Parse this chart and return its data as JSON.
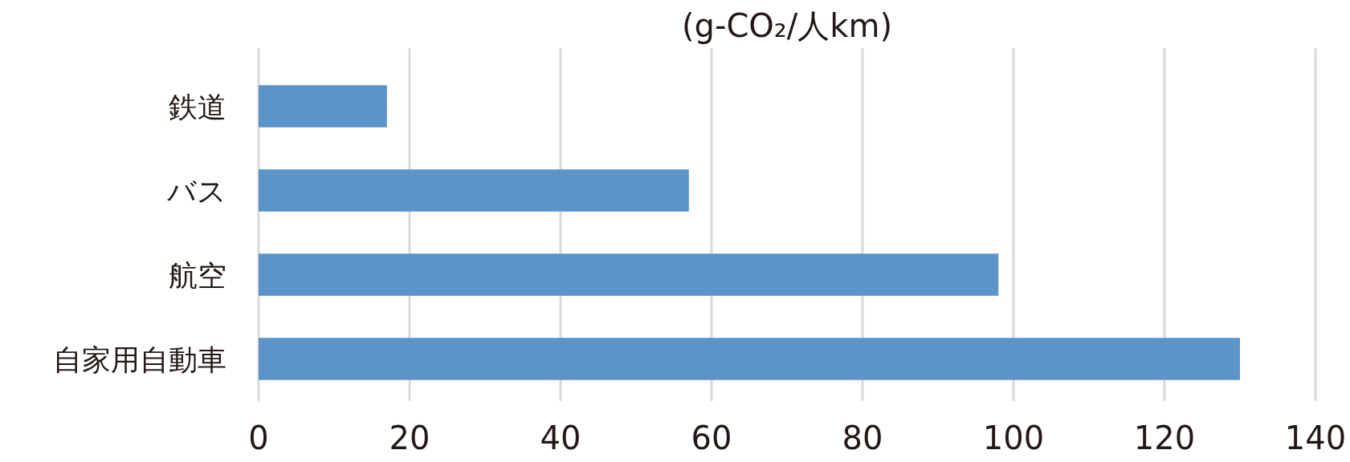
{
  "chart_data": {
    "type": "bar",
    "orientation": "horizontal",
    "title": "(g-CO₂/人km)",
    "categories": [
      "鉄道",
      "バス",
      "航空",
      "自家用自動車"
    ],
    "values": [
      17,
      57,
      98,
      130
    ],
    "color": "#5b94c8",
    "xlim": [
      0,
      140
    ],
    "xticks": [
      0,
      20,
      40,
      60,
      80,
      100,
      120,
      140
    ],
    "grid": "x"
  }
}
